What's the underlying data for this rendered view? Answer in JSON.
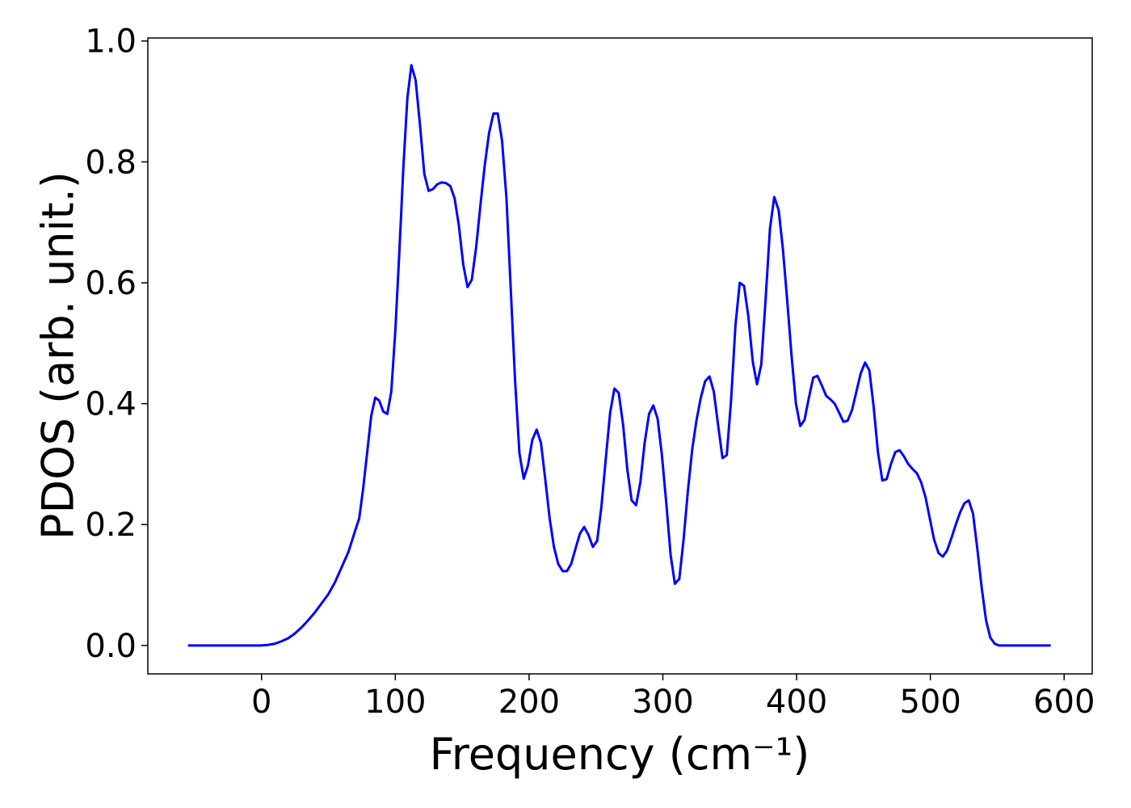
{
  "chart_data": {
    "type": "line",
    "xlabel": "Frequency (cm⁻¹)",
    "ylabel": "PDOS (arb. unit.)",
    "x": [
      -55,
      0,
      5,
      10,
      15,
      20,
      25,
      30,
      35,
      40,
      45,
      50,
      55,
      60,
      65,
      70,
      73,
      76,
      79,
      82,
      85,
      88,
      91,
      94,
      97,
      100,
      103,
      106,
      109,
      112,
      115.2,
      118.5,
      121.7,
      124.9,
      128.2,
      131.4,
      134.6,
      137.8,
      141.1,
      144.3,
      147.5,
      150.8,
      154.0,
      157.2,
      160.5,
      163.7,
      166.9,
      170.1,
      173.4,
      176.6,
      179.8,
      183.1,
      186.3,
      189.5,
      192.8,
      196.0,
      199.2,
      202.4,
      205.7,
      208.9,
      212.1,
      215.4,
      218.6,
      221.8,
      225.1,
      228.3,
      231.5,
      234.7,
      238.0,
      241.2,
      244.4,
      247.7,
      250.9,
      254.1,
      257.4,
      260.6,
      263.8,
      267.0,
      270.3,
      273.5,
      276.7,
      280.0,
      283.2,
      286.4,
      289.7,
      292.9,
      296.1,
      299.3,
      302.6,
      305.8,
      309.0,
      312.3,
      315.5,
      318.7,
      322.0,
      325.2,
      328.4,
      331.6,
      334.9,
      338.1,
      341.3,
      344.6,
      347.8,
      351.0,
      354.3,
      357.5,
      360.7,
      363.9,
      367.2,
      370.4,
      373.6,
      376.9,
      380.1,
      383.3,
      386.6,
      389.8,
      393.0,
      396.2,
      399.5,
      402.7,
      405.9,
      409.2,
      412.4,
      415.6,
      418.9,
      422.1,
      425.3,
      428.5,
      431.8,
      435.0,
      438.2,
      441.5,
      444.7,
      447.9,
      451.2,
      454.4,
      457.6,
      460.8,
      464.1,
      467.3,
      470.5,
      473.8,
      477.0,
      480.2,
      483.5,
      486.7,
      489.9,
      493.1,
      496.4,
      499.6,
      502.8,
      506.1,
      509.3,
      512.5,
      515.8,
      519.0,
      522.2,
      525.4,
      528.7,
      531.9,
      535.1,
      538.4,
      541.6,
      544.8,
      548.1,
      551.3,
      554.5,
      590
    ],
    "series": [
      {
        "color": "#0000ff",
        "values": [
          0,
          0,
          0.001,
          0.003,
          0.007,
          0.012,
          0.02,
          0.03,
          0.042,
          0.055,
          0.07,
          0.085,
          0.105,
          0.13,
          0.155,
          0.19,
          0.21,
          0.26,
          0.32,
          0.38,
          0.41,
          0.405,
          0.387,
          0.383,
          0.42,
          0.52,
          0.65,
          0.79,
          0.905,
          0.96,
          0.935,
          0.86,
          0.78,
          0.752,
          0.755,
          0.763,
          0.766,
          0.765,
          0.76,
          0.74,
          0.695,
          0.63,
          0.593,
          0.605,
          0.66,
          0.73,
          0.795,
          0.848,
          0.88,
          0.88,
          0.835,
          0.74,
          0.59,
          0.44,
          0.318,
          0.276,
          0.298,
          0.34,
          0.357,
          0.335,
          0.275,
          0.21,
          0.163,
          0.135,
          0.123,
          0.123,
          0.135,
          0.16,
          0.185,
          0.196,
          0.183,
          0.163,
          0.173,
          0.23,
          0.31,
          0.385,
          0.425,
          0.418,
          0.365,
          0.29,
          0.24,
          0.232,
          0.27,
          0.335,
          0.383,
          0.397,
          0.375,
          0.315,
          0.235,
          0.15,
          0.102,
          0.11,
          0.175,
          0.255,
          0.325,
          0.373,
          0.41,
          0.437,
          0.445,
          0.42,
          0.365,
          0.31,
          0.315,
          0.405,
          0.53,
          0.6,
          0.595,
          0.545,
          0.47,
          0.432,
          0.465,
          0.575,
          0.69,
          0.742,
          0.72,
          0.655,
          0.57,
          0.48,
          0.4,
          0.363,
          0.373,
          0.41,
          0.443,
          0.446,
          0.43,
          0.413,
          0.407,
          0.4,
          0.385,
          0.37,
          0.372,
          0.39,
          0.42,
          0.45,
          0.468,
          0.455,
          0.395,
          0.32,
          0.273,
          0.275,
          0.3,
          0.32,
          0.323,
          0.313,
          0.3,
          0.292,
          0.285,
          0.27,
          0.245,
          0.21,
          0.175,
          0.153,
          0.147,
          0.157,
          0.178,
          0.2,
          0.22,
          0.235,
          0.24,
          0.218,
          0.16,
          0.095,
          0.042,
          0.013,
          0.003,
          0,
          0,
          0
        ]
      }
    ],
    "xlim": [
      -85,
      621
    ],
    "ylim": [
      -0.047,
      1.005
    ],
    "xticks": [
      0,
      100,
      200,
      300,
      400,
      500,
      600
    ],
    "yticks": [
      {
        "value": 0,
        "label": "0.0"
      },
      0.2,
      0.4,
      0.6,
      0.8,
      {
        "value": 1,
        "label": "1.0"
      }
    ]
  }
}
